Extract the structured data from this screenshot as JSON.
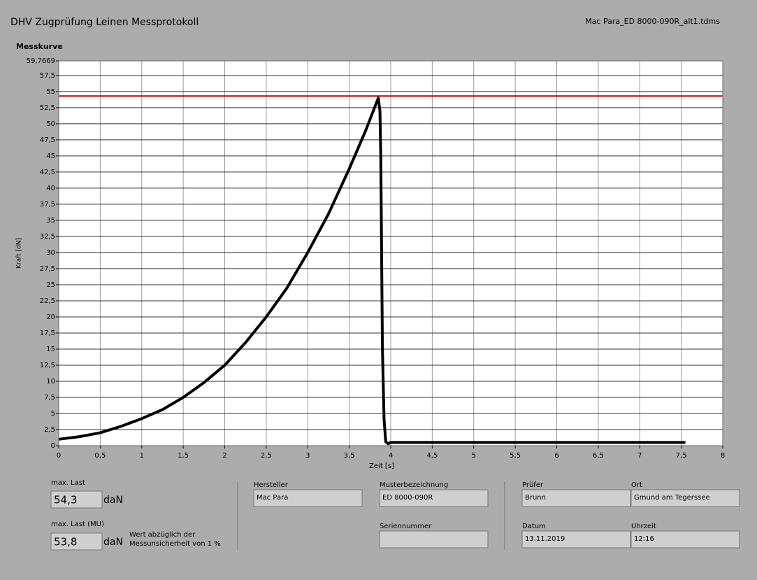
{
  "header": {
    "title": "DHV Zugprüfung Leinen Messprotokoll",
    "file": "Mac Para_ED 8000-090R_alt1.tdms"
  },
  "chart_data": {
    "type": "line",
    "title": "Messkurve",
    "x_label": "Zeit [s]",
    "y_label": "Kraft [dN]",
    "xlim": [
      0,
      8
    ],
    "ylim": [
      0,
      59.7669
    ],
    "xticks": [
      0,
      {
        "value": 0.5,
        "label": "0,5"
      },
      1,
      {
        "value": 1.5,
        "label": "1,5"
      },
      2,
      {
        "value": 2.5,
        "label": "2,5"
      },
      3,
      {
        "value": 3.5,
        "label": "3,5"
      },
      4,
      {
        "value": 4.5,
        "label": "4,5"
      },
      5,
      {
        "value": 5.5,
        "label": "5,5"
      },
      6,
      {
        "value": 6.5,
        "label": "6,5"
      },
      7,
      {
        "value": 7.5,
        "label": "7,5"
      },
      8
    ],
    "yticks": [
      0,
      {
        "value": 2.5,
        "label": "2,5"
      },
      5,
      {
        "value": 7.5,
        "label": "7,5"
      },
      10,
      {
        "value": 12.5,
        "label": "12,5"
      },
      15,
      {
        "value": 17.5,
        "label": "17,5"
      },
      20,
      {
        "value": 22.5,
        "label": "22,5"
      },
      25,
      {
        "value": 27.5,
        "label": "27,5"
      },
      30,
      {
        "value": 32.5,
        "label": "32,5"
      },
      35,
      {
        "value": 37.5,
        "label": "37,5"
      },
      40,
      {
        "value": 42.5,
        "label": "42,5"
      },
      45,
      {
        "value": 47.5,
        "label": "47,5"
      },
      50,
      {
        "value": 52.5,
        "label": "52,5"
      },
      55,
      {
        "value": 57.5,
        "label": "57,5"
      },
      {
        "value": 59.7669,
        "label": "59,7669"
      }
    ],
    "grid": true,
    "series": [
      {
        "color": "#000000",
        "x": [
          0,
          0.25,
          0.5,
          0.75,
          1,
          1.25,
          1.5,
          1.75,
          2,
          2.25,
          2.5,
          2.75,
          3,
          3.25,
          3.5,
          3.7,
          3.85,
          3.87,
          3.88,
          3.9,
          3.92,
          3.94,
          3.97,
          4,
          5,
          6,
          7,
          7.55
        ],
        "values": [
          1,
          1.4,
          2,
          3,
          4.2,
          5.6,
          7.5,
          9.8,
          12.5,
          16,
          20,
          24.5,
          30,
          36,
          43,
          49,
          54,
          52,
          45,
          15,
          4,
          0.6,
          0.3,
          0.5,
          0.5,
          0.5,
          0.5,
          0.5
        ]
      }
    ],
    "threshold": {
      "value": 54.3,
      "color": "#c00000"
    }
  },
  "loads": [
    {
      "label": "max. Last",
      "value": "54,3",
      "unit": "daN"
    },
    {
      "label": "max. Last (MU)",
      "value": "53,8",
      "unit": "daN",
      "note": "Wert abzüglich der Messunsicherheit von 1 %"
    }
  ],
  "fields": [
    {
      "label": "Hersteller",
      "value": "Mac Para"
    },
    {
      "label": "Musterbezeichnung",
      "value": "ED 8000-090R"
    },
    {
      "label": "Seriennummer"
    },
    {
      "label": "Prüfer",
      "value": "Brunn"
    },
    {
      "label": "Ort",
      "value": "Gmund am Tegerssee"
    },
    {
      "label": "Datum",
      "value": "13.11.2019"
    },
    {
      "label": "Uhrzeit",
      "value": "12:16"
    }
  ]
}
